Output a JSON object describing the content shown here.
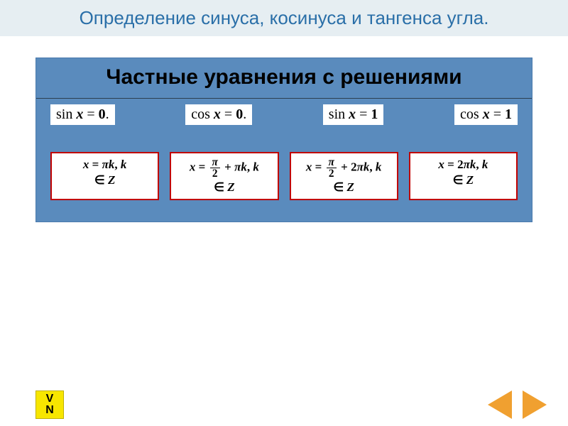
{
  "title": "Определение синуса, косинуса и тангенса угла.",
  "panel_title": "Частные уравнения с решениями",
  "colors": {
    "title_bg": "#e6eef2",
    "title_text": "#2a6fa8",
    "panel_bg": "#5a8bbd",
    "solution_border": "#c00000",
    "nav_arrow": "#f0a030",
    "badge_bg": "#f7e600"
  },
  "equations": [
    {
      "func": "sin",
      "var": "x",
      "val": "0",
      "trailing_dot": true
    },
    {
      "func": "cos",
      "var": "x",
      "val": "0",
      "trailing_dot": true
    },
    {
      "func": "sin",
      "var": "x",
      "val": "1",
      "trailing_dot": false
    },
    {
      "func": "cos",
      "var": "x",
      "val": "1",
      "trailing_dot": false
    }
  ],
  "solutions": [
    {
      "expr_html": "<span class='italic-x'>x</span> = <span class='italic-x'>πk</span>, <span class='italic-x'>k</span><br>∈ <span class='italic-x'>Z</span>"
    },
    {
      "expr_html": "<span class='italic-x'>x</span> = <span class='frac'><span class='num italic-x'>π</span><span class='den'>2</span></span> + <span class='italic-x'>πk</span>, <span class='italic-x'>k</span><br>∈ <span class='italic-x'>Z</span>"
    },
    {
      "expr_html": "<span class='italic-x'>x</span> = <span class='frac'><span class='num italic-x'>π</span><span class='den'>2</span></span> + 2<span class='italic-x'>πk</span>, <span class='italic-x'>k</span><br>∈ <span class='italic-x'>Z</span>"
    },
    {
      "expr_html": "<span class='italic-x'>x</span> = 2<span class='italic-x'>πk</span>, <span class='italic-x'>k</span><br>∈ <span class='italic-x'>Z</span>"
    }
  ],
  "badge": {
    "line1": "V",
    "line2": "N"
  },
  "nav": {
    "prev": "previous-slide",
    "next": "next-slide"
  }
}
